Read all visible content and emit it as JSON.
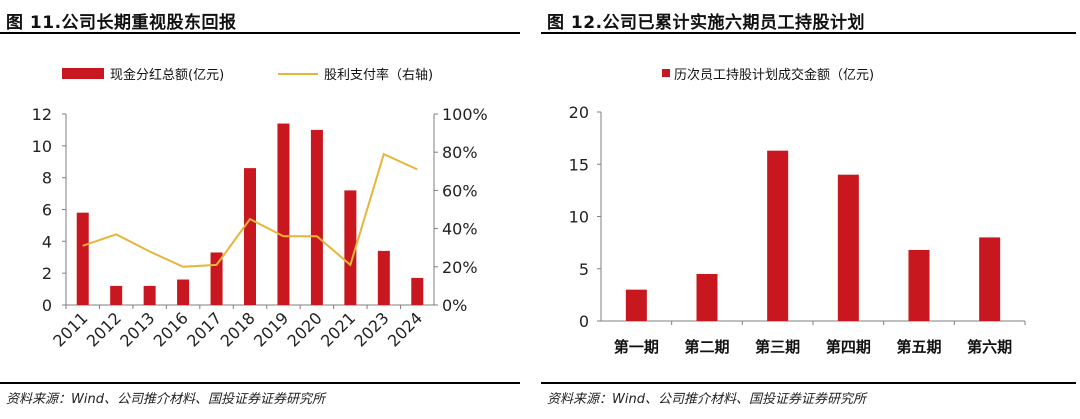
{
  "colors": {
    "bar": "#c8171e",
    "line": "#e7b53a",
    "axis": "#7f7f7f"
  },
  "left": {
    "title": "图 11.公司长期重视股东回报",
    "source": "资料来源：Wind、公司推介材料、国投证券证券研究所"
  },
  "right": {
    "title": "图 12.公司已累计实施六期员工持股计划",
    "source": "资料来源：Wind、公司推介材料、国投证券证券研究所"
  },
  "chart_data": [
    {
      "type": "bar+line",
      "categories": [
        "2011",
        "2012",
        "2013",
        "2016",
        "2017",
        "2018",
        "2019",
        "2020",
        "2021",
        "2023",
        "2024"
      ],
      "series": [
        {
          "name": "现金分红总额(亿元)",
          "type": "bar",
          "axis": "left",
          "values": [
            5.8,
            1.2,
            1.2,
            1.6,
            3.3,
            8.6,
            11.4,
            11.0,
            7.2,
            3.4,
            1.7
          ]
        },
        {
          "name": "股利支付率（右轴)",
          "type": "line",
          "axis": "right",
          "values": [
            31,
            37,
            28,
            20,
            21,
            45,
            36,
            36,
            21,
            79,
            71
          ]
        }
      ],
      "ylim": [
        0,
        12
      ],
      "yticks": [
        "0",
        "2",
        "4",
        "6",
        "8",
        "10",
        "12"
      ],
      "y2lim": [
        0,
        100
      ],
      "y2ticks": [
        "0%",
        "20%",
        "40%",
        "60%",
        "80%",
        "100%"
      ],
      "legend": "top",
      "grid": false
    },
    {
      "type": "bar",
      "categories": [
        "第一期",
        "第二期",
        "第三期",
        "第四期",
        "第五期",
        "第六期"
      ],
      "series": [
        {
          "name": "历次员工持股计划成交金额（亿元)",
          "values": [
            3.0,
            4.5,
            16.3,
            14.0,
            6.8,
            8.0
          ]
        }
      ],
      "ylim": [
        0,
        20
      ],
      "yticks": [
        "0",
        "5",
        "10",
        "15",
        "20"
      ],
      "legend": "top",
      "grid": false
    }
  ]
}
